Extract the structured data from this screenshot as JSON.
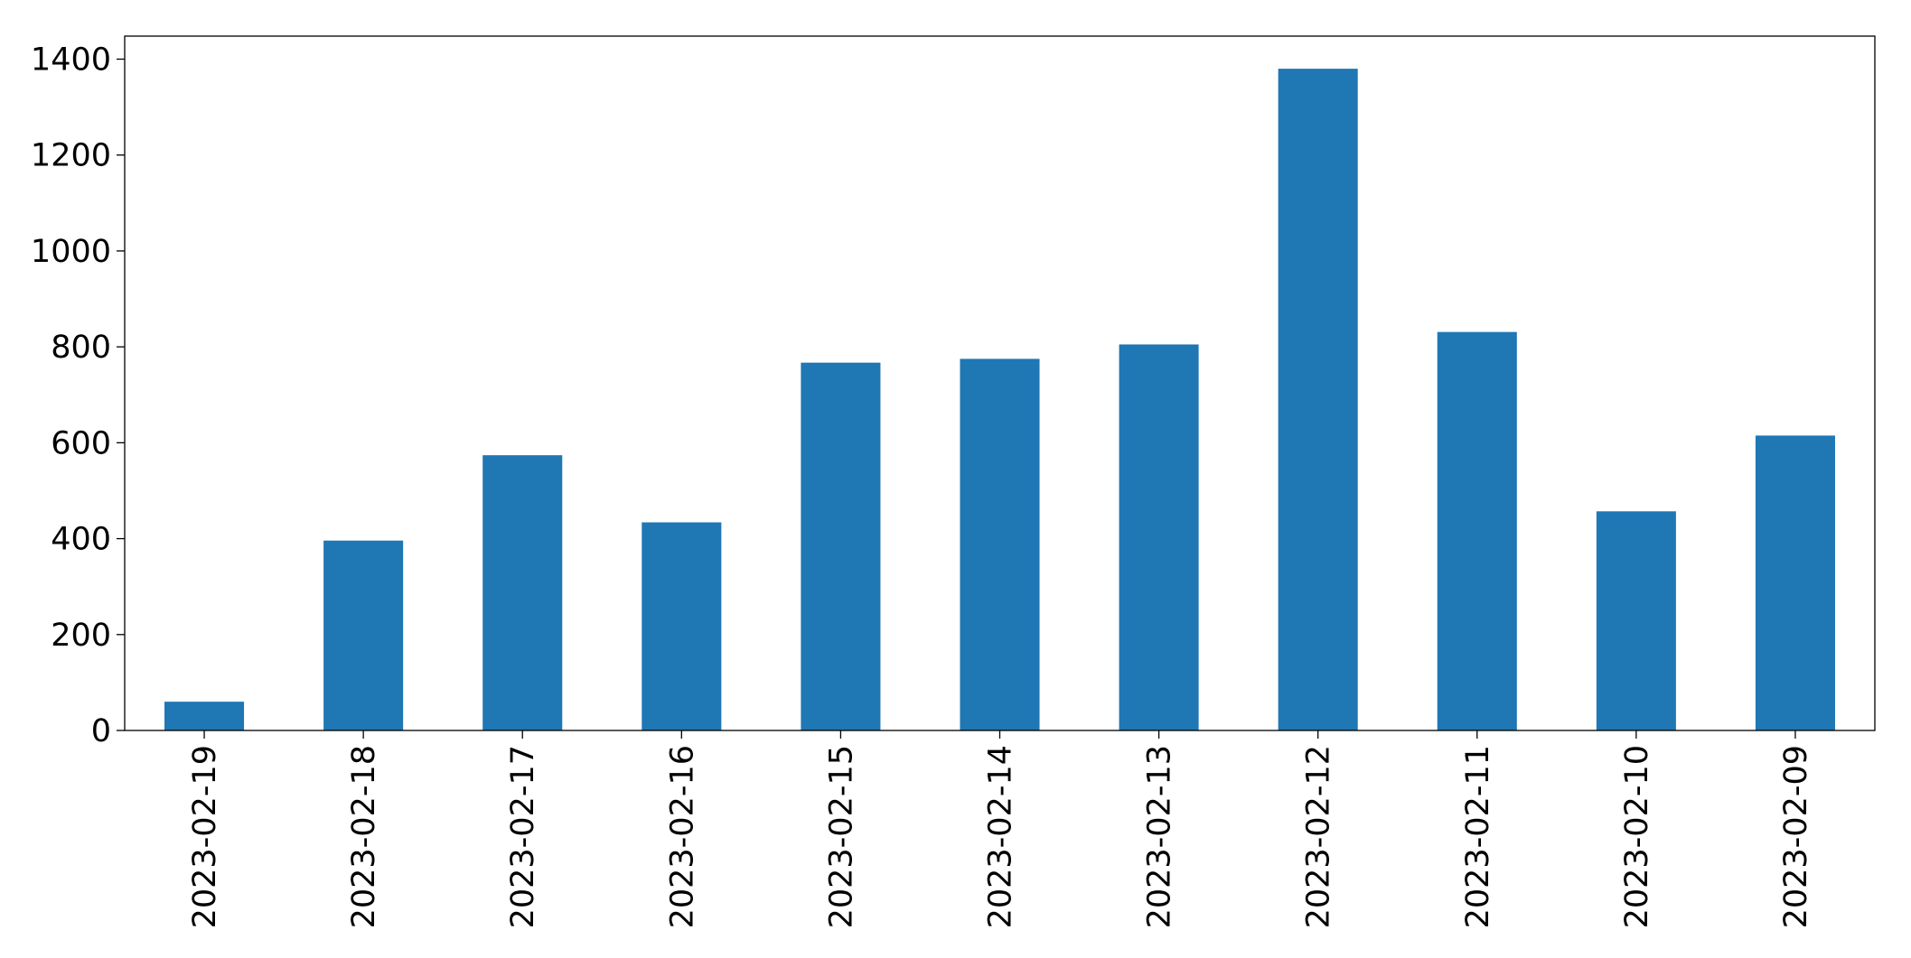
{
  "chart_data": {
    "type": "bar",
    "categories": [
      "2023-02-19",
      "2023-02-18",
      "2023-02-17",
      "2023-02-16",
      "2023-02-15",
      "2023-02-14",
      "2023-02-13",
      "2023-02-12",
      "2023-02-11",
      "2023-02-10",
      "2023-02-09"
    ],
    "values": [
      60,
      396,
      574,
      434,
      767,
      775,
      805,
      1380,
      831,
      457,
      615
    ],
    "color": "#1f77b4",
    "ylim": [
      0,
      1448
    ],
    "yticks": [
      0,
      200,
      400,
      600,
      800,
      1000,
      1200,
      1400
    ],
    "grid": false
  }
}
